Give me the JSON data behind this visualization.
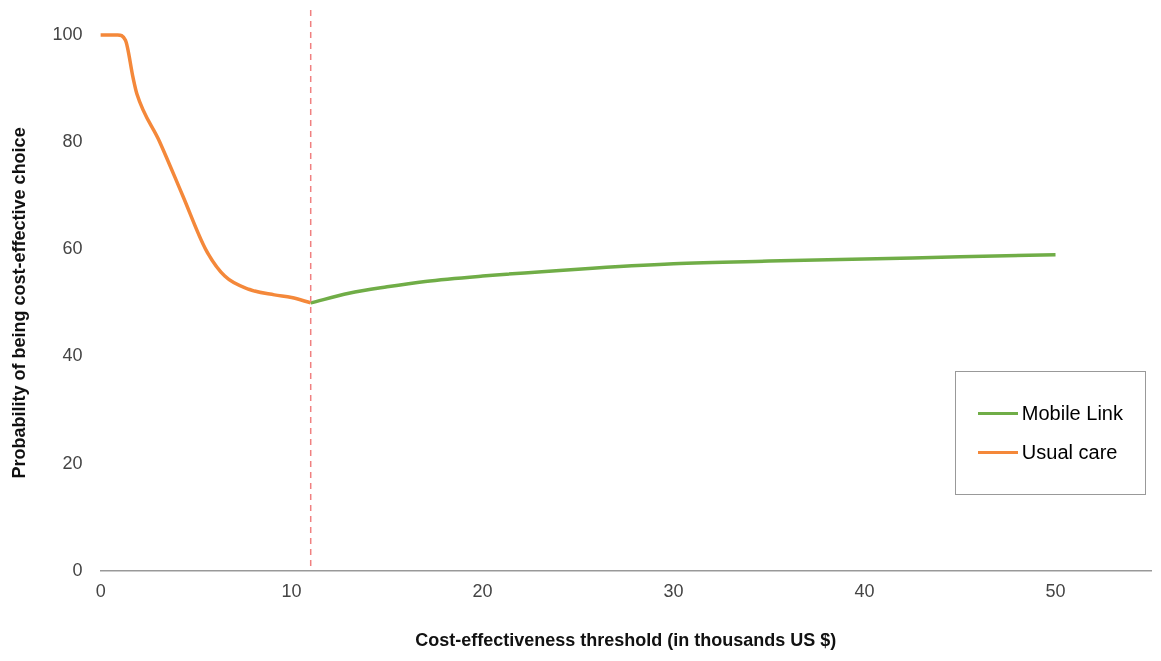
{
  "chart_data": {
    "type": "line",
    "xlabel": "Cost-effectiveness threshold (in thousands US $)",
    "ylabel": "Probability of being cost-effective choice",
    "xlim": [
      0,
      55
    ],
    "xticks": [
      0,
      10,
      20,
      30,
      40,
      50
    ],
    "ylim": [
      0,
      100
    ],
    "yticks": [
      0,
      20,
      40,
      60,
      80,
      100
    ],
    "grid": false,
    "legend": "bottom right",
    "marker": "none",
    "line_style": "solid",
    "series": [
      {
        "name": "Mobile Link",
        "color": "#70ad47",
        "x": [
          11,
          13,
          15,
          17,
          20,
          25,
          30,
          35,
          40,
          45,
          50
        ],
        "values": [
          50,
          51.8,
          53,
          54,
          55,
          56.3,
          57.3,
          57.8,
          58.2,
          58.6,
          59
        ]
      },
      {
        "name": "Usual care",
        "color": "#f4883a",
        "x": [
          0,
          0.5,
          0.9,
          1.3,
          1.7,
          1.9,
          3.1,
          4.3,
          5.5,
          6.5,
          7.8,
          9.1,
          10,
          11
        ],
        "values": [
          100,
          100,
          100,
          99,
          92,
          89,
          80,
          70,
          60,
          55,
          52.5,
          51.5,
          51,
          50
        ]
      }
    ],
    "ref_lines": [
      {
        "axis": "x",
        "value": 11,
        "color": "#f08080",
        "line_style": "dashed"
      }
    ]
  }
}
